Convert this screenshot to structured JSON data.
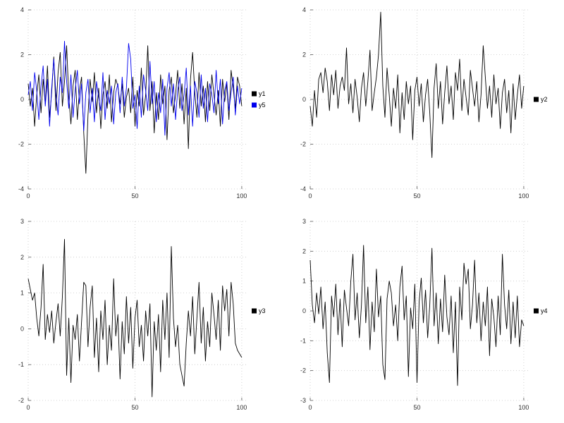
{
  "page": {
    "background": "#ffffff",
    "grid_color": "#c8c8c8",
    "tick_color": "#555555",
    "label_color": "#303030"
  },
  "chart_data": [
    {
      "id": "top-left",
      "type": "line",
      "title": "",
      "xlabel": "",
      "ylabel": "",
      "xlim": [
        0,
        103
      ],
      "ylim": [
        -4,
        4
      ],
      "xticks": [
        0,
        50,
        100
      ],
      "yticks": [
        -4,
        -2,
        0,
        2,
        4
      ],
      "grid": true,
      "legend_position": "right",
      "series": [
        {
          "name": "y1",
          "color": "#000000",
          "values": [
            0.7,
            -0.3,
            0.5,
            -1.2,
            0.2,
            1.1,
            -0.6,
            0.9,
            -0.2,
            1.5,
            -0.8,
            0.3,
            1.9,
            -0.5,
            1.2,
            2.1,
            -0.3,
            0.8,
            2.4,
            0.1,
            -1.1,
            0.6,
            1.3,
            -0.9,
            0.4,
            1.0,
            -1.5,
            -3.3,
            -0.7,
            0.9,
            -0.1,
            1.2,
            -0.6,
            0.5,
            -1.3,
            0.2,
            0.8,
            -0.4,
            1.1,
            -1.0,
            0.3,
            0.9,
            0.6,
            -0.2,
            0.7,
            -0.8,
            0.1,
            0.5,
            -0.6,
            1.0,
            -1.2,
            0.4,
            -0.3,
            1.4,
            -0.7,
            0.2,
            2.4,
            -0.5,
            0.8,
            -1.5,
            0.3,
            -0.9,
            1.1,
            -0.2,
            0.6,
            -1.8,
            0.4,
            1.0,
            -0.6,
            0.2,
            1.3,
            -0.4,
            0.7,
            -1.1,
            0.5,
            -2.2,
            0.9,
            2.1,
            0.3,
            -0.8,
            1.2,
            -0.3,
            0.6,
            -1.0,
            0.8,
            -0.5,
            1.1,
            0.2,
            -0.7,
            0.4,
            -1.2,
            0.9,
            -0.1,
            0.7,
            -0.9,
            1.3,
            0.5,
            -0.4,
            1.0,
            0.6,
            -0.3
          ]
        },
        {
          "name": "y5",
          "color": "#0000ee",
          "values": [
            0.2,
            0.8,
            -0.5,
            1.2,
            0.4,
            -0.9,
            0.6,
            1.5,
            -0.3,
            0.9,
            -1.2,
            0.5,
            1.8,
            0.2,
            -0.7,
            1.0,
            0.3,
            2.6,
            0.8,
            -0.4,
            1.1,
            -0.8,
            0.4,
            1.3,
            -0.2,
            0.7,
            -1.4,
            0.3,
            0.9,
            -0.6,
            0.5,
            -1.0,
            0.8,
            0.1,
            -0.5,
            1.2,
            -0.9,
            0.4,
            -0.2,
            0.6,
            -1.1,
            0.3,
            0.7,
            -0.6,
            1.0,
            -0.3,
            0.5,
            2.5,
            1.8,
            -0.4,
            0.2,
            -1.3,
            0.6,
            -0.8,
            1.1,
            0.4,
            -0.5,
            1.7,
            -0.2,
            0.8,
            -1.0,
            0.3,
            -0.6,
            0.9,
            -1.6,
            0.5,
            1.2,
            -0.3,
            0.7,
            -0.9,
            0.4,
            1.0,
            -0.5,
            0.2,
            1.4,
            -0.7,
            0.6,
            -1.2,
            0.8,
            0.3,
            -0.8,
            1.1,
            -0.4,
            0.5,
            -1.0,
            0.7,
            0.2,
            -0.6,
            1.3,
            -0.2,
            0.9,
            -1.1,
            0.4,
            0.8,
            -0.5,
            0.3,
            1.0,
            -0.7,
            0.6,
            -0.2,
            0.5
          ]
        }
      ]
    },
    {
      "id": "top-right",
      "type": "line",
      "title": "",
      "xlabel": "",
      "ylabel": "",
      "xlim": [
        0,
        103
      ],
      "ylim": [
        -4,
        4
      ],
      "xticks": [
        0,
        50,
        100
      ],
      "yticks": [
        -4,
        -2,
        0,
        2,
        4
      ],
      "grid": true,
      "legend_position": "right",
      "series": [
        {
          "name": "y2",
          "color": "#000000",
          "values": [
            -0.3,
            -1.2,
            0.4,
            -0.8,
            0.9,
            1.2,
            0.3,
            1.4,
            0.8,
            -0.5,
            1.1,
            0.2,
            1.3,
            -0.4,
            0.6,
            1.0,
            0.4,
            2.3,
            -0.2,
            0.7,
            -0.6,
            0.9,
            0.1,
            -1.0,
            0.5,
            1.2,
            -0.3,
            0.8,
            2.2,
            -0.5,
            0.3,
            1.0,
            2.0,
            3.9,
            0.6,
            -0.8,
            1.4,
            0.2,
            -1.2,
            0.5,
            -0.4,
            1.1,
            -1.5,
            0.3,
            -0.9,
            0.8,
            -0.2,
            0.6,
            -1.8,
            0.4,
            1.0,
            -0.3,
            0.7,
            -1.0,
            0.2,
            0.9,
            -0.6,
            -2.6,
            0.5,
            1.6,
            -0.4,
            0.8,
            -1.1,
            0.3,
            1.5,
            -0.2,
            0.6,
            -0.9,
            1.2,
            0.4,
            1.8,
            -0.5,
            0.9,
            0.1,
            -0.7,
            1.3,
            0.5,
            -0.3,
            0.8,
            -1.0,
            0.2,
            2.4,
            1.0,
            -0.4,
            0.6,
            -0.8,
            1.1,
            -0.2,
            0.5,
            -1.3,
            0.3,
            0.9,
            -0.6,
            0.4,
            -1.5,
            0.7,
            -0.9,
            0.2,
            1.1,
            -0.4,
            0.6
          ]
        }
      ]
    },
    {
      "id": "bottom-left",
      "type": "line",
      "title": "",
      "xlabel": "",
      "ylabel": "",
      "xlim": [
        0,
        103
      ],
      "ylim": [
        -2,
        3
      ],
      "xticks": [
        0,
        50,
        100
      ],
      "yticks": [
        -2,
        -1,
        0,
        1,
        2,
        3
      ],
      "grid": true,
      "legend_position": "right",
      "series": [
        {
          "name": "y3",
          "color": "#000000",
          "values": [
            1.4,
            1.1,
            0.8,
            1.0,
            0.3,
            -0.2,
            0.6,
            1.8,
            -0.3,
            0.4,
            -0.1,
            0.5,
            -0.4,
            0.2,
            0.7,
            -0.2,
            0.9,
            2.5,
            -1.3,
            0.3,
            -1.5,
            0.1,
            -0.3,
            0.4,
            -0.9,
            0.2,
            1.3,
            1.2,
            -0.5,
            0.6,
            1.2,
            -0.8,
            0.3,
            -1.2,
            0.5,
            -0.3,
            0.8,
            -1.0,
            0.1,
            -0.6,
            1.4,
            -0.2,
            0.4,
            -1.4,
            0.2,
            -0.7,
            0.9,
            -0.4,
            0.6,
            -1.1,
            0.3,
            0.8,
            -0.5,
            0.1,
            -0.9,
            0.5,
            -0.2,
            0.7,
            -1.9,
            0.2,
            -0.6,
            0.4,
            -1.2,
            0.8,
            -0.3,
            1.0,
            -0.8,
            2.3,
            0.3,
            -0.5,
            0.1,
            -1.0,
            -1.3,
            -1.6,
            -0.4,
            0.5,
            -0.2,
            0.9,
            -0.7,
            0.3,
            1.3,
            -0.4,
            0.6,
            -0.9,
            0.2,
            -0.5,
            1.0,
            0.4,
            -0.3,
            0.8,
            -0.6,
            1.2,
            0.5,
            1.1,
            -0.2,
            1.3,
            0.7,
            -0.4,
            -0.6,
            -0.7,
            -0.8
          ]
        }
      ]
    },
    {
      "id": "bottom-right",
      "type": "line",
      "title": "",
      "xlabel": "",
      "ylabel": "",
      "xlim": [
        0,
        103
      ],
      "ylim": [
        -3,
        3
      ],
      "xticks": [
        0,
        50,
        100
      ],
      "yticks": [
        -3,
        -2,
        -1,
        0,
        1,
        2,
        3
      ],
      "grid": true,
      "legend_position": "right",
      "series": [
        {
          "name": "y4",
          "color": "#000000",
          "values": [
            1.7,
            0.2,
            -0.4,
            0.6,
            -0.1,
            0.8,
            -0.6,
            0.3,
            -1.4,
            -2.4,
            0.5,
            -0.2,
            0.9,
            -0.8,
            0.4,
            -1.2,
            0.7,
            0.1,
            -0.5,
            1.0,
            1.9,
            -0.3,
            0.6,
            -0.9,
            0.2,
            2.2,
            -0.4,
            0.8,
            -1.3,
            0.3,
            -0.7,
            1.4,
            -0.2,
            0.5,
            -1.8,
            -2.3,
            0.4,
            1.0,
            0.6,
            -0.5,
            0.2,
            -1.0,
            0.8,
            1.5,
            -0.3,
            0.5,
            -2.2,
            0.1,
            -0.6,
            0.9,
            -2.4,
            0.3,
            1.1,
            -0.4,
            0.7,
            -0.9,
            0.2,
            2.1,
            -0.5,
            0.6,
            -1.1,
            0.4,
            -0.7,
            1.2,
            -0.2,
            -0.8,
            0.5,
            -1.4,
            0.3,
            -2.5,
            0.8,
            -0.3,
            1.6,
            0.9,
            1.4,
            -0.6,
            0.2,
            1.7,
            -0.4,
            0.6,
            -1.0,
            0.3,
            -0.5,
            0.8,
            -1.5,
            0.4,
            -0.2,
            -1.2,
            0.5,
            -0.8,
            1.9,
            0.2,
            -0.6,
            0.7,
            -1.1,
            0.3,
            -0.9,
            0.5,
            -1.2,
            -0.3,
            -0.5
          ]
        }
      ]
    }
  ]
}
